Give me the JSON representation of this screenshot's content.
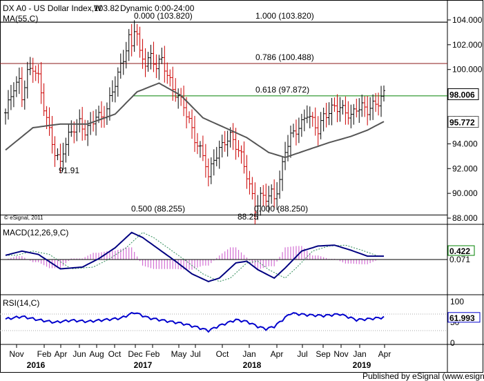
{
  "header": {
    "symbol_line": "DX A0 - US Dollar Index,W",
    "dynamic": "Dynamic 0:00-24:00",
    "overlap_text": "103.82",
    "ma_label": "MA(55,C)"
  },
  "footer": {
    "copyright": "© eSignal, 2011",
    "published": "Published by eSignal (www.esignal.com)"
  },
  "chart_data": [
    {
      "type": "candlestick",
      "panel": "price",
      "y_ticks": [
        "104.000",
        "102.000",
        "100.000",
        "98.000",
        "96.000",
        "94.000",
        "92.000",
        "90.000",
        "88.000"
      ],
      "y_tick_values": [
        104,
        102,
        100,
        98,
        96,
        94,
        92,
        90,
        88
      ],
      "ylim": [
        87.5,
        105.5
      ],
      "current_price_label": "98.006",
      "current_price": 98.006,
      "ma_value_label": "95.772",
      "ma_value": 95.772,
      "fib_levels": [
        {
          "label": "0.000 (103.820)",
          "value": 103.82,
          "color": "#000000"
        },
        {
          "label": "1.000 (103.820)",
          "value": 103.82,
          "color": "#000000"
        },
        {
          "label": "0.786 (100.488)",
          "value": 100.488,
          "color": "#8b1a1a"
        },
        {
          "label": "0.618 (97.872)",
          "value": 97.872,
          "color": "#008000"
        },
        {
          "label": "0.500 (88.255)",
          "value": 88.255,
          "color": "#800080"
        },
        {
          "label": "0.000 (88.250)",
          "value": 88.25,
          "color": "#000000"
        }
      ],
      "annotations": [
        {
          "label": "91.91",
          "value": 91.91
        },
        {
          "label": "88.25",
          "value": 88.25
        }
      ],
      "price_path": [
        [
          0,
          96.5
        ],
        [
          3,
          98.6
        ],
        [
          5,
          99.0
        ],
        [
          6,
          97.8
        ],
        [
          8,
          99.7
        ],
        [
          10,
          100.2
        ],
        [
          12,
          99.3
        ],
        [
          14,
          97.0
        ],
        [
          16,
          95.0
        ],
        [
          18,
          93.3
        ],
        [
          20,
          92.4
        ],
        [
          21,
          93.5
        ],
        [
          23,
          94.6
        ],
        [
          25,
          95.3
        ],
        [
          27,
          95.7
        ],
        [
          29,
          95.0
        ],
        [
          31,
          95.5
        ],
        [
          33,
          96.3
        ],
        [
          35,
          96.1
        ],
        [
          37,
          96.8
        ],
        [
          39,
          98.3
        ],
        [
          41,
          99.6
        ],
        [
          43,
          100.9
        ],
        [
          45,
          102.5
        ],
        [
          46,
          101.8
        ],
        [
          47,
          103.4
        ],
        [
          48,
          102.9
        ],
        [
          49,
          101.2
        ],
        [
          51,
          100.6
        ],
        [
          53,
          101.0
        ],
        [
          55,
          100.3
        ],
        [
          57,
          100.8
        ],
        [
          59,
          99.6
        ],
        [
          61,
          98.4
        ],
        [
          63,
          97.8
        ],
        [
          65,
          97.1
        ],
        [
          67,
          95.8
        ],
        [
          69,
          94.4
        ],
        [
          71,
          93.5
        ],
        [
          73,
          92.5
        ],
        [
          74,
          91.3
        ],
        [
          76,
          92.8
        ],
        [
          78,
          93.5
        ],
        [
          80,
          94.2
        ],
        [
          82,
          94.6
        ],
        [
          84,
          93.9
        ],
        [
          86,
          93.0
        ],
        [
          88,
          91.5
        ],
        [
          90,
          89.7
        ],
        [
          91,
          88.7
        ],
        [
          93,
          89.7
        ],
        [
          95,
          89.7
        ],
        [
          97,
          90.0
        ],
        [
          98,
          89.6
        ],
        [
          100,
          91.0
        ],
        [
          102,
          93.5
        ],
        [
          104,
          94.6
        ],
        [
          106,
          95.1
        ],
        [
          108,
          95.6
        ],
        [
          110,
          96.5
        ],
        [
          112,
          95.8
        ],
        [
          114,
          95.1
        ],
        [
          116,
          96.2
        ],
        [
          118,
          96.6
        ],
        [
          120,
          97.0
        ],
        [
          122,
          96.9
        ],
        [
          124,
          96.6
        ],
        [
          126,
          96.2
        ],
        [
          128,
          96.9
        ],
        [
          130,
          97.0
        ],
        [
          132,
          96.7
        ],
        [
          134,
          97.1
        ],
        [
          136,
          97.4
        ],
        [
          138,
          98.0
        ]
      ],
      "ma_path": [
        [
          0,
          93.5
        ],
        [
          10,
          95.3
        ],
        [
          20,
          95.6
        ],
        [
          30,
          95.6
        ],
        [
          40,
          96.4
        ],
        [
          48,
          98.2
        ],
        [
          56,
          98.9
        ],
        [
          64,
          97.9
        ],
        [
          72,
          96.1
        ],
        [
          80,
          95.3
        ],
        [
          88,
          94.5
        ],
        [
          96,
          93.3
        ],
        [
          102,
          92.9
        ],
        [
          110,
          93.5
        ],
        [
          118,
          94.1
        ],
        [
          126,
          94.6
        ],
        [
          132,
          95.1
        ],
        [
          138,
          95.8
        ]
      ]
    },
    {
      "type": "line",
      "panel": "macd",
      "title": "MACD(12,26,9,C)",
      "value_label": "0.422",
      "value": 0.422,
      "signal_value_label": "0.071",
      "signal_value": 0.071,
      "macd_path": [
        [
          0,
          0.5
        ],
        [
          6,
          1.0
        ],
        [
          12,
          0.6
        ],
        [
          20,
          -1.1
        ],
        [
          28,
          -0.9
        ],
        [
          34,
          0.1
        ],
        [
          40,
          1.4
        ],
        [
          46,
          3.2
        ],
        [
          50,
          2.6
        ],
        [
          56,
          1.2
        ],
        [
          62,
          -0.2
        ],
        [
          68,
          -1.7
        ],
        [
          74,
          -2.6
        ],
        [
          78,
          -2.2
        ],
        [
          84,
          -0.4
        ],
        [
          88,
          -0.2
        ],
        [
          92,
          -1.2
        ],
        [
          98,
          -2.2
        ],
        [
          102,
          -1.0
        ],
        [
          108,
          1.0
        ],
        [
          114,
          1.6
        ],
        [
          120,
          1.7
        ],
        [
          126,
          1.1
        ],
        [
          132,
          0.4
        ],
        [
          138,
          0.4
        ]
      ]
    },
    {
      "type": "line",
      "panel": "rsi",
      "title": "RSI(14,C)",
      "y_ticks": [
        "100",
        "50",
        "0"
      ],
      "y_tick_values": [
        100,
        50,
        0
      ],
      "guide_levels": [
        70,
        30
      ],
      "value_label": "61.993",
      "value": 61.993,
      "rsi_path": [
        [
          0,
          58
        ],
        [
          6,
          64
        ],
        [
          12,
          56
        ],
        [
          18,
          50
        ],
        [
          24,
          55
        ],
        [
          30,
          52
        ],
        [
          36,
          56
        ],
        [
          42,
          60
        ],
        [
          47,
          74
        ],
        [
          52,
          61
        ],
        [
          58,
          54
        ],
        [
          64,
          48
        ],
        [
          70,
          38
        ],
        [
          74,
          30
        ],
        [
          78,
          42
        ],
        [
          84,
          56
        ],
        [
          88,
          52
        ],
        [
          92,
          40
        ],
        [
          95,
          34
        ],
        [
          98,
          40
        ],
        [
          104,
          72
        ],
        [
          110,
          68
        ],
        [
          116,
          66
        ],
        [
          122,
          70
        ],
        [
          128,
          56
        ],
        [
          132,
          58
        ],
        [
          138,
          62
        ]
      ]
    }
  ],
  "x_axis": {
    "labels": [
      "Nov",
      "Feb",
      "Apr",
      "Jun",
      "Aug",
      "Oct",
      "Dec",
      "Feb",
      "May",
      "Jul",
      "Oct",
      "Jan",
      "Apr",
      "Jul",
      "Sep",
      "Nov",
      "Jan",
      "Apr"
    ],
    "years": [
      "2016",
      "2017",
      "2018",
      "2019"
    ]
  }
}
